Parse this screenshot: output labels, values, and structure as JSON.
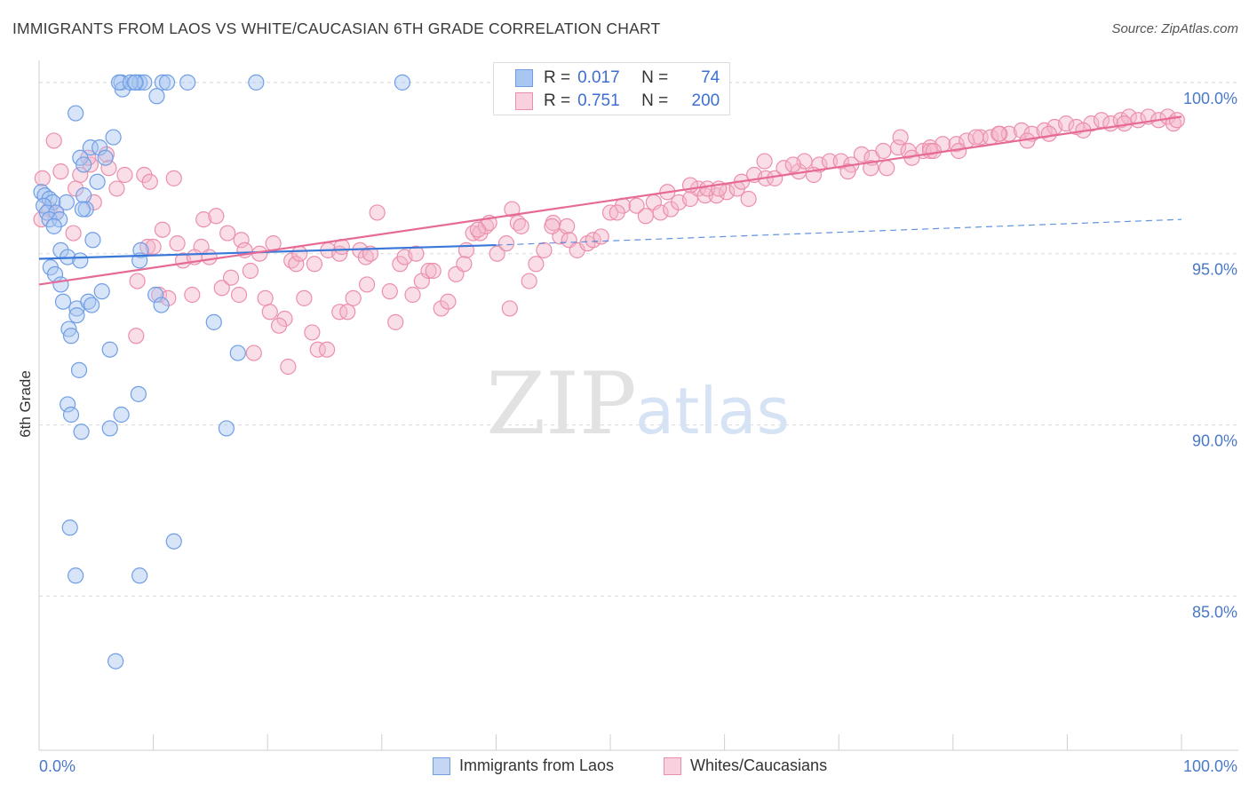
{
  "title": "IMMIGRANTS FROM LAOS VS WHITE/CAUCASIAN 6TH GRADE CORRELATION CHART",
  "source": "Source: ZipAtlas.com",
  "watermark": {
    "zip": "ZIP",
    "atlas": "atlas"
  },
  "colors": {
    "blue_fill": "#a9c6f0",
    "blue_stroke": "#6f9ee6",
    "blue_line": "#3a78d8",
    "pink_fill": "#f4b6c9",
    "pink_stroke": "#ec8fab",
    "pink_line": "#e66a96",
    "tick_label": "#4a78c8",
    "grid": "#dcdcdc"
  },
  "stats": {
    "rows": [
      {
        "r_label": "R =",
        "r_value": "0.017",
        "n_label": "N =",
        "n_value": "74"
      },
      {
        "r_label": "R =",
        "r_value": "0.751",
        "n_label": "N =",
        "n_value": "200"
      }
    ]
  },
  "legend": {
    "items": [
      "Immigrants from Laos",
      "Whites/Caucasians"
    ]
  },
  "chart_data": {
    "type": "scatter",
    "ylabel": "6th Grade",
    "xlim": [
      0,
      100
    ],
    "ylim": [
      80.5,
      100.8
    ],
    "x_tick_labels": [
      "0.0%",
      "100.0%"
    ],
    "y_ticks": [
      85,
      90,
      95,
      100
    ],
    "y_tick_labels": [
      "85.0%",
      "90.0%",
      "95.0%",
      "100.0%"
    ],
    "grid": "horizontal dashed",
    "legend_placement": "bottom",
    "series": [
      {
        "name": "Immigrants from Laos",
        "color": "#a9c6f0",
        "trend": {
          "x": [
            0,
            40
          ],
          "y": [
            94.85,
            95.25
          ],
          "dashed_extension_to": [
            100,
            96.0
          ]
        },
        "points": [
          [
            7.2,
            100
          ],
          [
            7.3,
            99.8
          ],
          [
            7.0,
            100
          ],
          [
            8.5,
            100
          ],
          [
            8.8,
            100
          ],
          [
            9.2,
            100
          ],
          [
            8.0,
            100
          ],
          [
            8.4,
            100
          ],
          [
            10.8,
            100
          ],
          [
            11.2,
            100
          ],
          [
            10.3,
            99.6
          ],
          [
            13.0,
            100
          ],
          [
            19.0,
            100
          ],
          [
            31.8,
            100
          ],
          [
            3.2,
            99.1
          ],
          [
            6.5,
            98.4
          ],
          [
            4.5,
            98.1
          ],
          [
            5.3,
            98.1
          ],
          [
            3.6,
            97.8
          ],
          [
            5.8,
            97.8
          ],
          [
            3.9,
            97.6
          ],
          [
            5.1,
            97.1
          ],
          [
            0.2,
            96.8
          ],
          [
            0.5,
            96.7
          ],
          [
            0.9,
            96.6
          ],
          [
            1.2,
            96.5
          ],
          [
            0.4,
            96.4
          ],
          [
            0.7,
            96.2
          ],
          [
            1.5,
            96.2
          ],
          [
            2.4,
            96.5
          ],
          [
            3.9,
            96.7
          ],
          [
            4.1,
            96.3
          ],
          [
            3.8,
            96.3
          ],
          [
            0.9,
            96.0
          ],
          [
            1.8,
            96.0
          ],
          [
            1.3,
            95.8
          ],
          [
            4.7,
            95.4
          ],
          [
            1.9,
            95.1
          ],
          [
            2.5,
            94.9
          ],
          [
            3.6,
            94.8
          ],
          [
            1.0,
            94.6
          ],
          [
            1.4,
            94.4
          ],
          [
            8.9,
            95.1
          ],
          [
            8.8,
            94.8
          ],
          [
            1.9,
            94.1
          ],
          [
            2.1,
            93.6
          ],
          [
            3.3,
            93.4
          ],
          [
            4.3,
            93.6
          ],
          [
            4.6,
            93.5
          ],
          [
            5.5,
            93.9
          ],
          [
            10.2,
            93.8
          ],
          [
            10.7,
            93.5
          ],
          [
            3.3,
            93.2
          ],
          [
            2.6,
            92.8
          ],
          [
            2.8,
            92.6
          ],
          [
            15.3,
            93.0
          ],
          [
            6.2,
            92.2
          ],
          [
            17.4,
            92.1
          ],
          [
            3.5,
            91.6
          ],
          [
            8.7,
            90.9
          ],
          [
            2.5,
            90.6
          ],
          [
            2.8,
            90.3
          ],
          [
            7.2,
            90.3
          ],
          [
            3.7,
            89.8
          ],
          [
            6.2,
            89.9
          ],
          [
            16.4,
            89.9
          ],
          [
            2.7,
            87.0
          ],
          [
            11.8,
            86.6
          ],
          [
            3.2,
            85.6
          ],
          [
            8.8,
            85.6
          ],
          [
            6.7,
            83.1
          ]
        ]
      },
      {
        "name": "Whites/Caucasians",
        "color": "#f4b6c9",
        "trend": {
          "x": [
            0,
            100
          ],
          "y": [
            94.1,
            99.0
          ]
        },
        "points": [
          [
            1.3,
            98.3
          ],
          [
            0.3,
            97.2
          ],
          [
            1.9,
            97.4
          ],
          [
            3.6,
            97.3
          ],
          [
            4.5,
            97.6
          ],
          [
            5.9,
            97.9
          ],
          [
            3.2,
            96.9
          ],
          [
            6.8,
            96.9
          ],
          [
            7.5,
            97.3
          ],
          [
            9.2,
            97.3
          ],
          [
            9.7,
            97.1
          ],
          [
            11.8,
            97.2
          ],
          [
            0.9,
            96.3
          ],
          [
            1.5,
            96.2
          ],
          [
            4.8,
            96.5
          ],
          [
            14.4,
            96.0
          ],
          [
            15.5,
            96.1
          ],
          [
            3.0,
            95.6
          ],
          [
            9.5,
            95.2
          ],
          [
            10.8,
            95.7
          ],
          [
            12.1,
            95.3
          ],
          [
            14.2,
            95.2
          ],
          [
            16.5,
            95.6
          ],
          [
            17.7,
            95.4
          ],
          [
            18.0,
            95.1
          ],
          [
            19.3,
            95.0
          ],
          [
            20.5,
            95.3
          ],
          [
            12.6,
            94.8
          ],
          [
            13.6,
            94.9
          ],
          [
            14.9,
            94.9
          ],
          [
            22.1,
            94.8
          ],
          [
            22.5,
            94.7
          ],
          [
            24.1,
            94.7
          ],
          [
            25.3,
            95.1
          ],
          [
            26.3,
            95.0
          ],
          [
            28.1,
            95.1
          ],
          [
            28.6,
            94.9
          ],
          [
            29.0,
            95.0
          ],
          [
            8.6,
            94.2
          ],
          [
            10.5,
            93.8
          ],
          [
            11.3,
            93.7
          ],
          [
            13.4,
            93.8
          ],
          [
            16.0,
            94.0
          ],
          [
            16.8,
            94.3
          ],
          [
            17.5,
            93.8
          ],
          [
            19.8,
            93.7
          ],
          [
            20.2,
            93.3
          ],
          [
            21.5,
            93.1
          ],
          [
            21.0,
            92.9
          ],
          [
            23.2,
            93.7
          ],
          [
            23.9,
            92.7
          ],
          [
            24.4,
            92.2
          ],
          [
            25.2,
            92.2
          ],
          [
            26.3,
            93.3
          ],
          [
            27.0,
            93.3
          ],
          [
            27.5,
            93.7
          ],
          [
            28.7,
            94.1
          ],
          [
            30.7,
            93.9
          ],
          [
            31.2,
            93.0
          ],
          [
            32.7,
            93.8
          ],
          [
            8.5,
            92.6
          ],
          [
            18.8,
            92.1
          ],
          [
            21.8,
            91.7
          ],
          [
            29.6,
            96.2
          ],
          [
            31.6,
            94.7
          ],
          [
            32.0,
            94.9
          ],
          [
            33.5,
            94.2
          ],
          [
            34.1,
            94.5
          ],
          [
            34.5,
            94.5
          ],
          [
            35.2,
            93.4
          ],
          [
            35.8,
            93.6
          ],
          [
            36.5,
            94.4
          ],
          [
            37.2,
            94.7
          ],
          [
            37.4,
            95.1
          ],
          [
            38.0,
            95.6
          ],
          [
            38.6,
            95.6
          ],
          [
            39.1,
            95.8
          ],
          [
            39.4,
            95.9
          ],
          [
            40.1,
            95.0
          ],
          [
            40.9,
            95.3
          ],
          [
            41.4,
            96.3
          ],
          [
            41.9,
            95.9
          ],
          [
            42.2,
            95.8
          ],
          [
            41.2,
            93.4
          ],
          [
            42.9,
            94.2
          ],
          [
            43.5,
            94.7
          ],
          [
            44.2,
            95.1
          ],
          [
            45.0,
            95.9
          ],
          [
            45.6,
            95.5
          ],
          [
            46.2,
            95.8
          ],
          [
            46.4,
            95.4
          ],
          [
            47.1,
            95.1
          ],
          [
            48.0,
            95.3
          ],
          [
            48.5,
            95.4
          ],
          [
            50.0,
            96.2
          ],
          [
            51.1,
            96.4
          ],
          [
            50.6,
            96.2
          ],
          [
            52.3,
            96.4
          ],
          [
            53.1,
            96.1
          ],
          [
            53.8,
            96.5
          ],
          [
            54.4,
            96.2
          ],
          [
            55.3,
            96.3
          ],
          [
            56.0,
            96.5
          ],
          [
            57.0,
            96.6
          ],
          [
            55.0,
            96.8
          ],
          [
            57.7,
            96.9
          ],
          [
            58.3,
            96.7
          ],
          [
            59.3,
            96.7
          ],
          [
            60.2,
            96.8
          ],
          [
            61.1,
            96.9
          ],
          [
            62.1,
            96.6
          ],
          [
            61.5,
            97.1
          ],
          [
            62.6,
            97.3
          ],
          [
            63.6,
            97.2
          ],
          [
            64.4,
            97.2
          ],
          [
            65.2,
            97.5
          ],
          [
            66.5,
            97.4
          ],
          [
            67.0,
            97.7
          ],
          [
            68.3,
            97.6
          ],
          [
            69.2,
            97.7
          ],
          [
            70.2,
            97.7
          ],
          [
            71.1,
            97.6
          ],
          [
            72.0,
            97.9
          ],
          [
            72.9,
            97.8
          ],
          [
            73.9,
            98.0
          ],
          [
            75.2,
            98.1
          ],
          [
            76.1,
            98.0
          ],
          [
            77.4,
            98.0
          ],
          [
            78.0,
            98.1
          ],
          [
            79.1,
            98.2
          ],
          [
            80.3,
            98.2
          ],
          [
            81.2,
            98.3
          ],
          [
            82.4,
            98.4
          ],
          [
            83.3,
            98.4
          ],
          [
            84.1,
            98.5
          ],
          [
            84.9,
            98.5
          ],
          [
            86.0,
            98.6
          ],
          [
            86.9,
            98.5
          ],
          [
            88.0,
            98.6
          ],
          [
            88.9,
            98.7
          ],
          [
            89.9,
            98.8
          ],
          [
            90.8,
            98.7
          ],
          [
            92.1,
            98.8
          ],
          [
            93.0,
            98.9
          ],
          [
            93.8,
            98.8
          ],
          [
            94.7,
            98.9
          ],
          [
            95.4,
            99.0
          ],
          [
            96.2,
            98.9
          ],
          [
            97.1,
            99.0
          ],
          [
            98.0,
            98.9
          ],
          [
            98.8,
            99.0
          ],
          [
            99.3,
            98.8
          ],
          [
            99.6,
            98.9
          ],
          [
            75.4,
            98.4
          ],
          [
            78.0,
            98.0
          ],
          [
            80.5,
            98.0
          ],
          [
            84.0,
            98.5
          ],
          [
            86.5,
            98.3
          ],
          [
            88.4,
            98.5
          ],
          [
            91.4,
            98.6
          ],
          [
            95.0,
            98.8
          ],
          [
            58.5,
            96.9
          ],
          [
            59.5,
            96.9
          ],
          [
            57.0,
            97.0
          ],
          [
            63.5,
            97.7
          ],
          [
            66.0,
            97.6
          ],
          [
            67.8,
            97.3
          ],
          [
            70.8,
            97.4
          ],
          [
            72.8,
            97.5
          ],
          [
            74.2,
            97.5
          ],
          [
            76.4,
            97.8
          ],
          [
            78.3,
            98.0
          ],
          [
            82.0,
            98.4
          ],
          [
            0.2,
            96.0
          ],
          [
            4.3,
            97.8
          ],
          [
            6.1,
            97.5
          ],
          [
            10.0,
            95.2
          ],
          [
            18.5,
            94.5
          ],
          [
            22.8,
            95.0
          ],
          [
            26.5,
            95.2
          ],
          [
            33.0,
            95.0
          ],
          [
            38.4,
            95.7
          ],
          [
            44.9,
            95.8
          ],
          [
            49.2,
            95.5
          ]
        ]
      }
    ]
  }
}
